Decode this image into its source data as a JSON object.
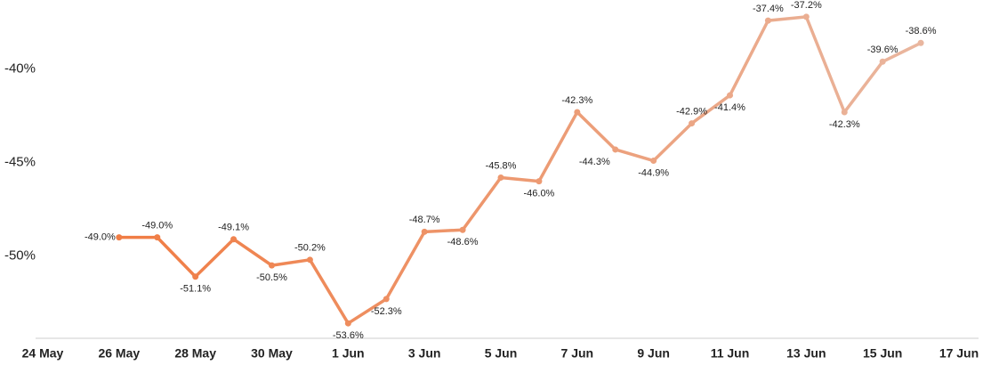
{
  "chart_data": {
    "type": "line",
    "categories": [
      "24 May",
      null,
      "26 May",
      null,
      "28 May",
      null,
      "30 May",
      null,
      "1 Jun",
      null,
      "3 Jun",
      null,
      "5 Jun",
      null,
      "7 Jun",
      null,
      "9 Jun",
      null,
      "11 Jun",
      null,
      "13 Jun",
      null,
      "15 Jun",
      null,
      "17 Jun"
    ],
    "series": [
      {
        "color_start": "#f07d45",
        "color_end": "#e9b9a3",
        "values": [
          null,
          null,
          -49.0,
          -49.0,
          -51.1,
          -49.1,
          -50.5,
          -50.2,
          -53.6,
          -52.3,
          -48.7,
          -48.6,
          -45.8,
          -46.0,
          -42.3,
          -44.3,
          -44.9,
          -42.9,
          -41.4,
          -37.4,
          -37.2,
          -42.3,
          -39.6,
          -38.6,
          null
        ],
        "value_labels": [
          null,
          null,
          "-49.0%",
          "-49.0%",
          "-51.1%",
          "-49.1%",
          "-50.5%",
          "-50.2%",
          "-53.6%",
          "-52.3%",
          "-48.7%",
          "-48.6%",
          "-45.8%",
          "-46.0%",
          "-42.3%",
          "-44.3%",
          "-44.9%",
          "-42.9%",
          "-41.4%",
          "-37.4%",
          "-37.2%",
          "-42.3%",
          "-39.6%",
          "-38.6%",
          null
        ]
      }
    ],
    "ylim": [
      -54.4,
      -36.3
    ],
    "yticks": [
      {
        "value": -50,
        "label": "-50%"
      },
      {
        "value": -45,
        "label": "-45%"
      },
      {
        "value": -40,
        "label": "-40%"
      }
    ],
    "grid": false
  }
}
